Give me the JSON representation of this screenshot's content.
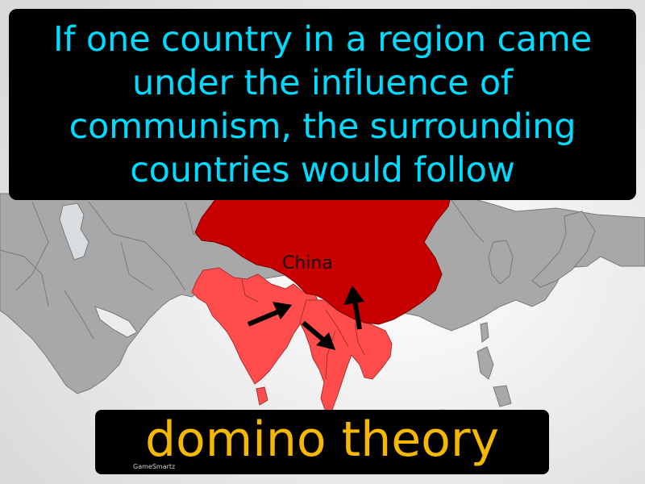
{
  "definition": "If one country in a region came under the influence of communism, the surrounding countries would follow",
  "term": "domino theory",
  "map": {
    "label_china": "China",
    "colors": {
      "china": "#c80000",
      "neighbors": "#ff4d4d",
      "land": "#a8a8a8",
      "ocean": "#f2f2f2",
      "borders": "#7a7a7a"
    }
  },
  "brand": "GameSmartz"
}
